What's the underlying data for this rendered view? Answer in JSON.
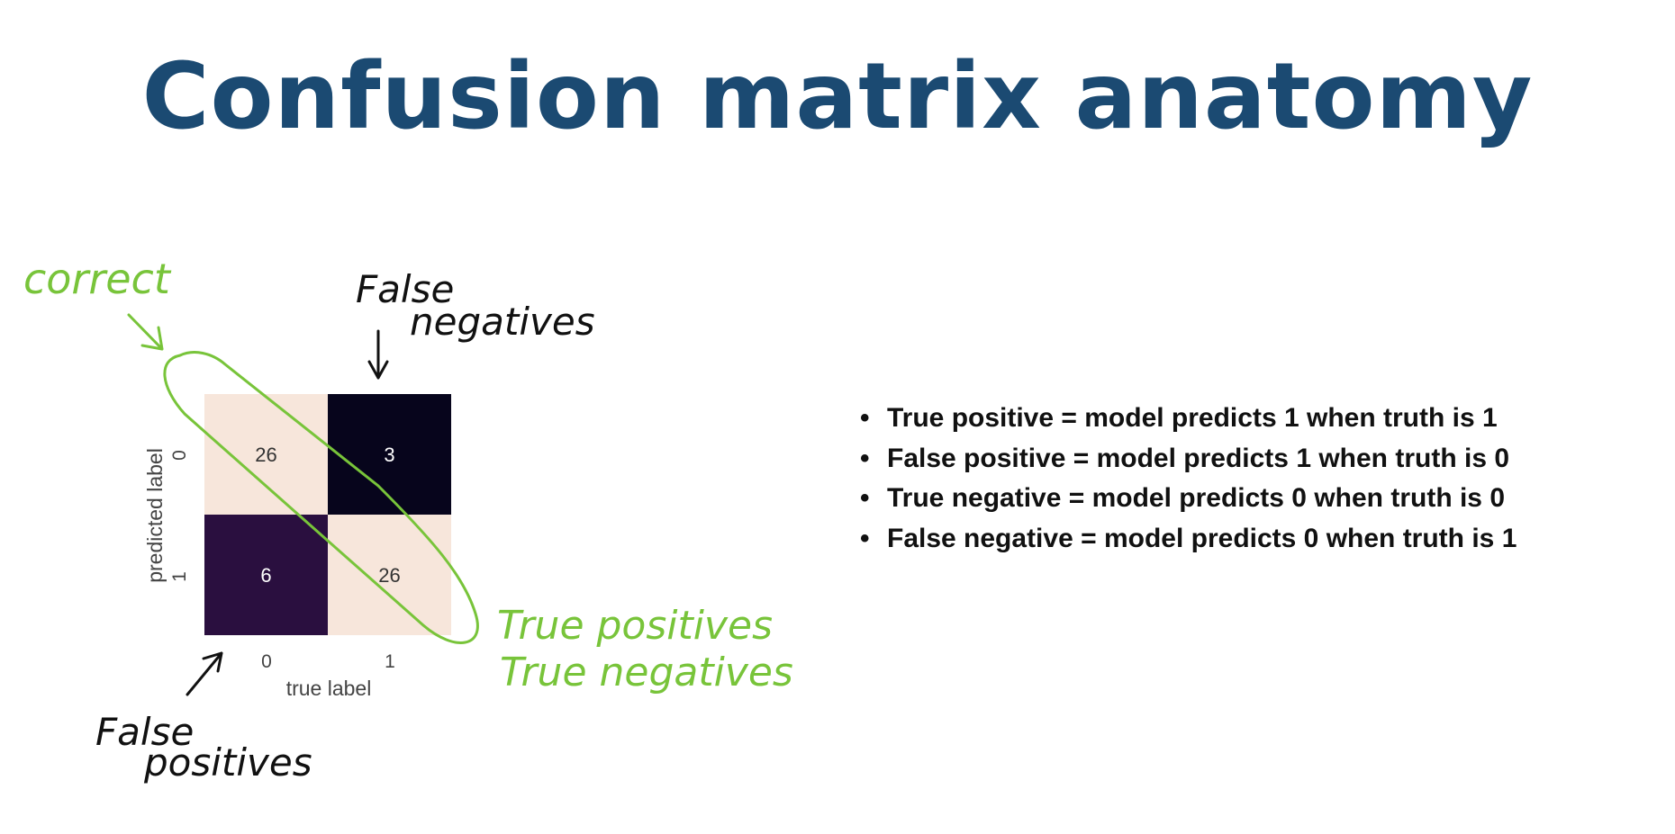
{
  "slide": {
    "title": "Confusion matrix anatomy"
  },
  "chart_data": {
    "type": "heatmap",
    "xlabel": "true label",
    "ylabel": "predicted label",
    "x_ticks": [
      "0",
      "1"
    ],
    "y_ticks": [
      "0",
      "1"
    ],
    "cells": [
      [
        26,
        3
      ],
      [
        6,
        26
      ]
    ],
    "colors": [
      [
        "#f7e6db",
        "#07051c"
      ],
      [
        "#2a0f3f",
        "#f7e6db"
      ]
    ],
    "value_text_colors": [
      [
        "#333333",
        "#ffffff"
      ],
      [
        "#ffffff",
        "#333333"
      ]
    ]
  },
  "annotations": {
    "correct": "correct",
    "false_negatives": [
      "False",
      "negatives"
    ],
    "false_positives": [
      "False",
      "positives"
    ],
    "true_positives": "True positives",
    "true_negatives": "True negatives",
    "highlight_color": "#78c43a"
  },
  "bullets": [
    "True positive = model predicts 1 when truth is 1",
    "False positive = model predicts 1 when truth is 0",
    "True negative = model predicts 0 when truth is 0",
    "False negative = model predicts 0 when truth is 1"
  ]
}
